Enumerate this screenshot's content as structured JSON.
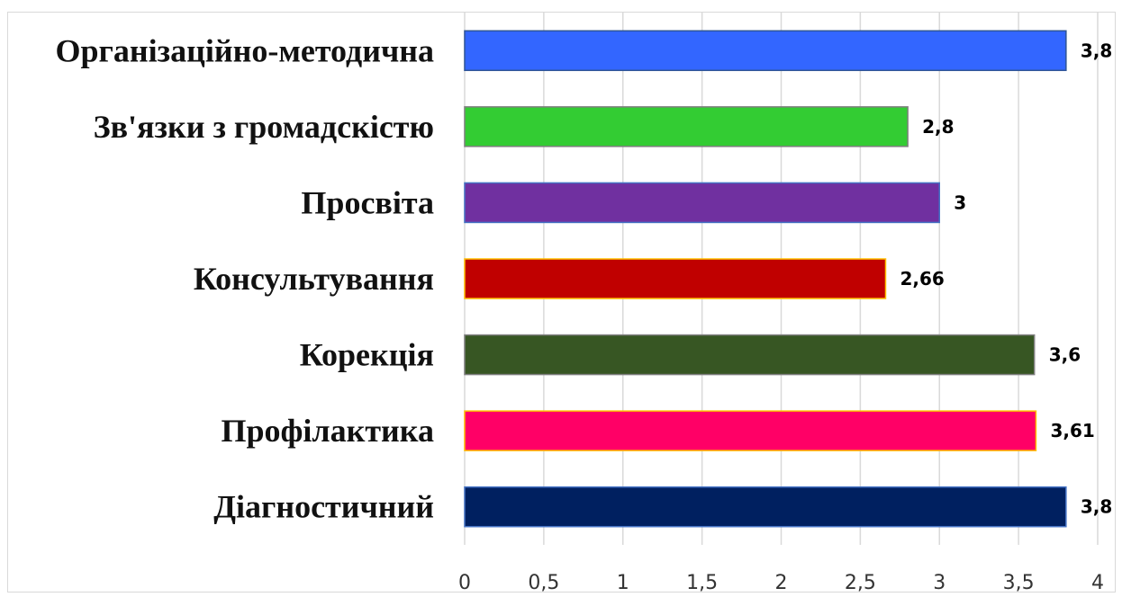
{
  "chart_data": {
    "type": "bar",
    "orientation": "horizontal",
    "title": "",
    "xlabel": "",
    "ylabel": "",
    "categories": [
      "Організаційно-методична",
      "Зв'язки з громадскістю",
      "Просвіта",
      "Консультування",
      "Корекція",
      "Профілактика",
      "Діагностичний"
    ],
    "values": [
      3.8,
      2.8,
      3,
      2.66,
      3.6,
      3.61,
      3.8
    ],
    "value_labels": [
      "3,8",
      "2,8",
      "3",
      "2,66",
      "3,6",
      "3,61",
      "3,8"
    ],
    "colors": [
      "#3366ff",
      "#33cc33",
      "#7030a0",
      "#c00000",
      "#375623",
      "#ff0066",
      "#002060"
    ],
    "border_colors": [
      "#2f5597",
      "#7f7f7f",
      "#4472c4",
      "#ffc000",
      "#7f7f7f",
      "#ffc000",
      "#4472c4"
    ],
    "xlim": [
      0,
      4
    ],
    "x_ticks": [
      0,
      0.5,
      1,
      1.5,
      2,
      2.5,
      3,
      3.5,
      4
    ],
    "x_tick_labels": [
      "0",
      "0,5",
      "1",
      "1,5",
      "2",
      "2,5",
      "3",
      "3,5",
      "4"
    ],
    "grid": "vertical",
    "legend": "none"
  }
}
